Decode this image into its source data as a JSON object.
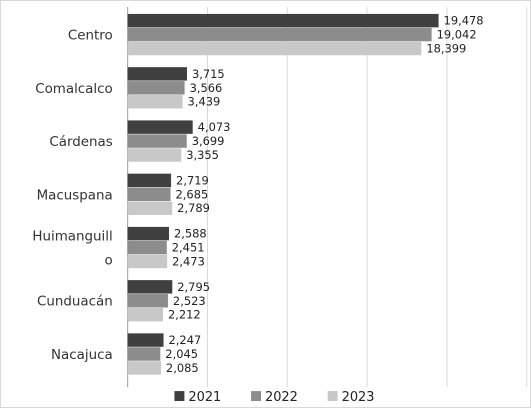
{
  "chart_data": {
    "type": "bar",
    "orientation": "horizontal",
    "categories": [
      "Centro",
      "Comalcalco",
      "Cárdenas",
      "Macuspana",
      "Huimanguillo",
      "Cunduacán",
      "Nacajuca"
    ],
    "category_label_lines": [
      [
        "Centro"
      ],
      [
        "Comalcalco"
      ],
      [
        "Cárdenas"
      ],
      [
        "Macuspana"
      ],
      [
        "Huimanguill",
        "o"
      ],
      [
        "Cunduacán"
      ],
      [
        "Nacajuca"
      ]
    ],
    "series": [
      {
        "name": "2021",
        "color": "#404040",
        "values": [
          19478,
          3715,
          4073,
          2719,
          2588,
          2795,
          2247
        ],
        "labels": [
          "19,478",
          "3,715",
          "4,073",
          "2,719",
          "2,588",
          "2,795",
          "2,247"
        ]
      },
      {
        "name": "2022",
        "color": "#8c8c8c",
        "values": [
          19042,
          3566,
          3699,
          2685,
          2451,
          2523,
          2045
        ],
        "labels": [
          "19,042",
          "3,566",
          "3,699",
          "2,685",
          "2,451",
          "2,523",
          "2,045"
        ]
      },
      {
        "name": "2023",
        "color": "#c8c8c8",
        "values": [
          18399,
          3439,
          3355,
          2789,
          2473,
          2212,
          2085
        ],
        "labels": [
          "18,399",
          "3,439",
          "3,355",
          "2,789",
          "2,473",
          "2,212",
          "2,085"
        ]
      }
    ],
    "xlim": [
      0,
      25000
    ],
    "grid": true,
    "legend_position": "bottom",
    "title": "",
    "xlabel": "",
    "ylabel": ""
  }
}
